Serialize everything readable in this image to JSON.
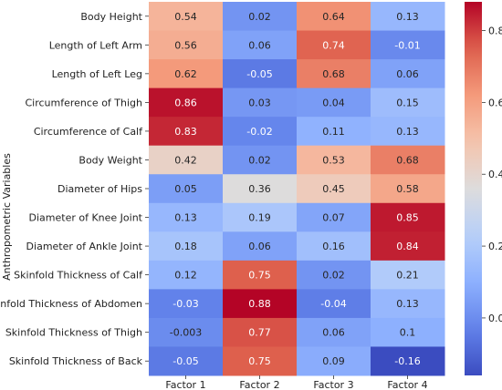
{
  "chart_data": {
    "type": "heatmap",
    "ylabel": "Anthropometric Variables",
    "xlabel": "",
    "columns": [
      "Factor 1",
      "Factor 2",
      "Factor 3",
      "Factor 4"
    ],
    "rows": [
      "Body Height",
      "Length of Left Arm",
      "Length of Left Leg",
      "Circumference of Thigh",
      "Circumference of Calf",
      "Body Weight",
      "Diameter of Hips",
      "Diameter of Knee Joint",
      "Diameter of Ankle Joint",
      "Skinfold Thickness of Calf",
      "Skinfold Thickness of Abdomen",
      "Skinfold Thickness of Thigh",
      "Skinfold Thickness of Back"
    ],
    "values": [
      [
        0.54,
        0.02,
        0.64,
        0.13
      ],
      [
        0.56,
        0.06,
        0.74,
        -0.01
      ],
      [
        0.62,
        -0.05,
        0.68,
        0.06
      ],
      [
        0.86,
        0.03,
        0.04,
        0.15
      ],
      [
        0.83,
        -0.02,
        0.11,
        0.13
      ],
      [
        0.42,
        0.02,
        0.53,
        0.68
      ],
      [
        0.05,
        0.36,
        0.45,
        0.58
      ],
      [
        0.13,
        0.19,
        0.07,
        0.85
      ],
      [
        0.18,
        0.06,
        0.16,
        0.84
      ],
      [
        0.12,
        0.75,
        0.02,
        0.21
      ],
      [
        -0.03,
        0.88,
        -0.04,
        0.13
      ],
      [
        -0.003,
        0.77,
        0.06,
        0.1
      ],
      [
        -0.05,
        0.75,
        0.09,
        -0.16
      ]
    ],
    "value_labels": [
      [
        "0.54",
        "0.02",
        "0.64",
        "0.13"
      ],
      [
        "0.56",
        "0.06",
        "0.74",
        "-0.01"
      ],
      [
        "0.62",
        "-0.05",
        "0.68",
        "0.06"
      ],
      [
        "0.86",
        "0.03",
        "0.04",
        "0.15"
      ],
      [
        "0.83",
        "-0.02",
        "0.11",
        "0.13"
      ],
      [
        "0.42",
        "0.02",
        "0.53",
        "0.68"
      ],
      [
        "0.05",
        "0.36",
        "0.45",
        "0.58"
      ],
      [
        "0.13",
        "0.19",
        "0.07",
        "0.85"
      ],
      [
        "0.18",
        "0.06",
        "0.16",
        "0.84"
      ],
      [
        "0.12",
        "0.75",
        "0.02",
        "0.21"
      ],
      [
        "-0.03",
        "0.88",
        "-0.04",
        "0.13"
      ],
      [
        "-0.003",
        "0.77",
        "0.06",
        "0.1"
      ],
      [
        "-0.05",
        "0.75",
        "0.09",
        "-0.16"
      ]
    ],
    "colormap": "coolwarm",
    "vmin": -0.16,
    "vmax": 0.88,
    "colorbar_ticks": [
      "0.8",
      "0.6",
      "0.4",
      "0.2",
      "0.0"
    ],
    "colorbar_tick_values": [
      0.8,
      0.6,
      0.4,
      0.2,
      0.0
    ],
    "colors": {
      "low": "#3b4cc0",
      "mid": "#dddcdc",
      "high": "#b40426"
    }
  }
}
